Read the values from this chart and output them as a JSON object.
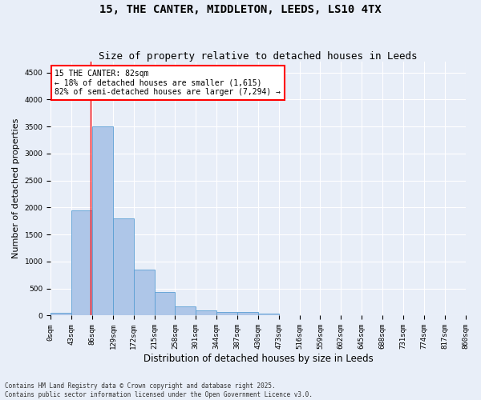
{
  "title_line1": "15, THE CANTER, MIDDLETON, LEEDS, LS10 4TX",
  "title_line2": "Size of property relative to detached houses in Leeds",
  "xlabel": "Distribution of detached houses by size in Leeds",
  "ylabel": "Number of detached properties",
  "bin_edges": [
    0,
    43,
    86,
    129,
    172,
    215,
    258,
    301,
    344,
    387,
    430,
    473,
    516,
    559,
    602,
    645,
    688,
    731,
    774,
    817,
    860
  ],
  "bar_heights": [
    50,
    1950,
    3500,
    1800,
    850,
    440,
    170,
    100,
    65,
    65,
    30,
    10,
    5,
    2,
    2,
    1,
    0,
    0,
    0,
    0
  ],
  "bar_color": "#aec6e8",
  "bar_edgecolor": "#5a9fd4",
  "property_size": 82,
  "annotation_line1": "15 THE CANTER: 82sqm",
  "annotation_line2": "← 18% of detached houses are smaller (1,615)",
  "annotation_line3": "82% of semi-detached houses are larger (7,294) →",
  "annotation_box_color": "white",
  "annotation_box_edgecolor": "red",
  "vline_color": "red",
  "ylim": [
    0,
    4700
  ],
  "yticks": [
    0,
    500,
    1000,
    1500,
    2000,
    2500,
    3000,
    3500,
    4000,
    4500
  ],
  "footnote_line1": "Contains HM Land Registry data © Crown copyright and database right 2025.",
  "footnote_line2": "Contains public sector information licensed under the Open Government Licence v3.0.",
  "plot_bg_color": "#e8eef8",
  "fig_bg_color": "#e8eef8",
  "grid_color": "white",
  "title1_fontsize": 10,
  "title2_fontsize": 9,
  "tick_fontsize": 6.5,
  "xlabel_fontsize": 8.5,
  "ylabel_fontsize": 8,
  "annot_fontsize": 7,
  "footnote_fontsize": 5.5
}
